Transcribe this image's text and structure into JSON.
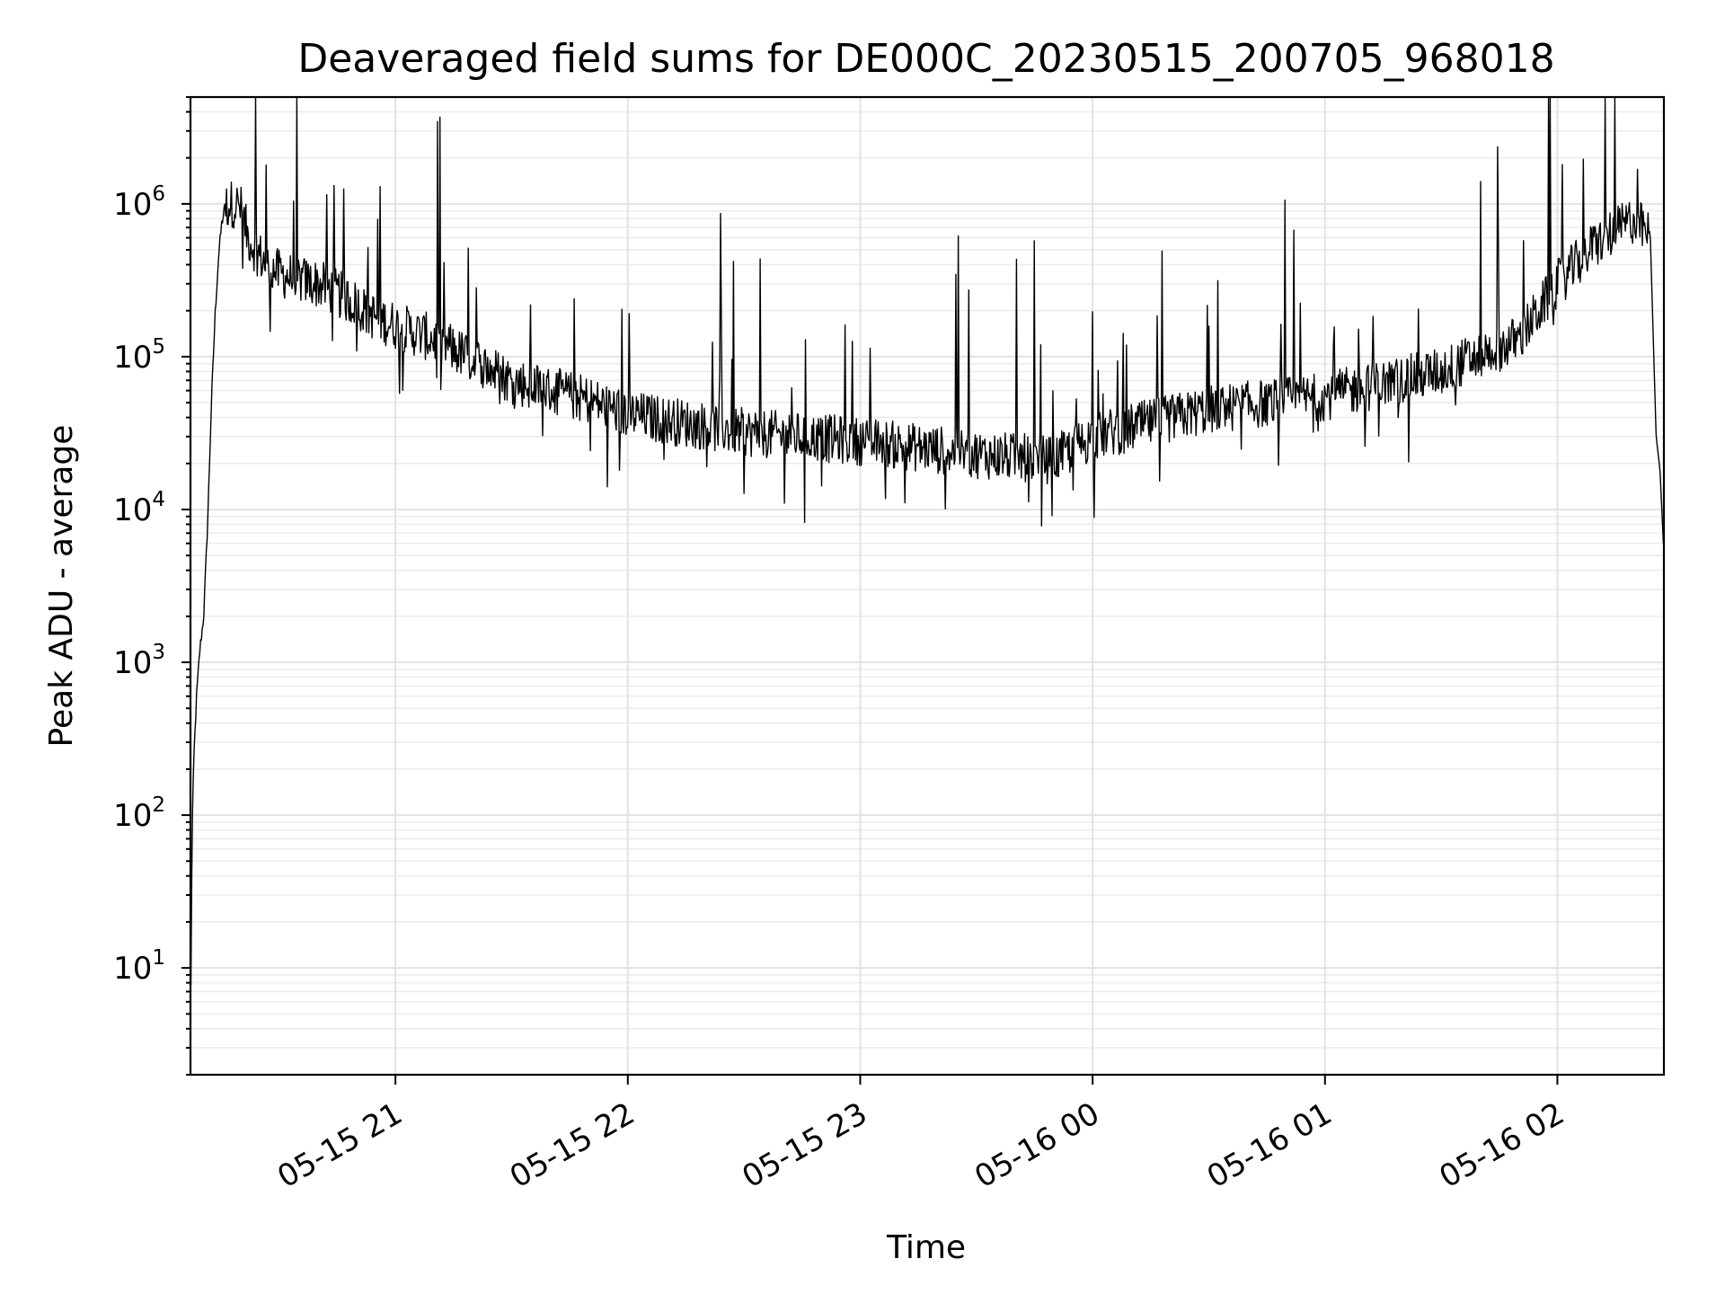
{
  "chart_data": {
    "type": "line",
    "title": "Deaveraged field sums for DE000C_20230515_200705_968018",
    "xlabel": "Time",
    "ylabel": "Peak ADU - average",
    "yscale": "log",
    "ylim": [
      2,
      5000000
    ],
    "xlim": [
      "2023-05-15 20:07:05",
      "2023-05-16 02:27:30"
    ],
    "grid": true,
    "legend": "none",
    "line_color": "#000000",
    "x_ticks": [
      {
        "value": "2023-05-15 21:00",
        "label": "05-15 21"
      },
      {
        "value": "2023-05-15 22:00",
        "label": "05-15 22"
      },
      {
        "value": "2023-05-15 23:00",
        "label": "05-15 23"
      },
      {
        "value": "2023-05-16 00:00",
        "label": "05-16 00"
      },
      {
        "value": "2023-05-16 01:00",
        "label": "05-16 01"
      },
      {
        "value": "2023-05-16 02:00",
        "label": "05-16 02"
      }
    ],
    "y_ticks": [
      {
        "value": 10,
        "base": "10",
        "exp": "1"
      },
      {
        "value": 100,
        "base": "10",
        "exp": "2"
      },
      {
        "value": 1000,
        "base": "10",
        "exp": "3"
      },
      {
        "value": 10000,
        "base": "10",
        "exp": "4"
      },
      {
        "value": 100000,
        "base": "10",
        "exp": "5"
      },
      {
        "value": 1000000,
        "base": "10",
        "exp": "6"
      }
    ],
    "series": [
      {
        "x": [
          "2023-05-15 20:07:05",
          "2023-05-15 20:07:30",
          "2023-05-15 20:08:00",
          "2023-05-15 20:08:40",
          "2023-05-15 20:09:30",
          "2023-05-15 20:10:30",
          "2023-05-15 20:11:30",
          "2023-05-15 20:12:30",
          "2023-05-15 20:13:30",
          "2023-05-15 20:14:20",
          "2023-05-15 20:15:10",
          "2023-05-15 20:16:00",
          "2023-05-15 20:17:00",
          "2023-05-15 20:18:30",
          "2023-05-15 20:20:00",
          "2023-05-15 20:22:00",
          "2023-05-15 20:24:00",
          "2023-05-15 20:26:00",
          "2023-05-15 20:28:00",
          "2023-05-15 20:30:00",
          "2023-05-15 20:35:00",
          "2023-05-15 20:40:00",
          "2023-05-15 20:45:00",
          "2023-05-15 20:50:00",
          "2023-05-15 20:55:00",
          "2023-05-15 21:00:00",
          "2023-05-15 21:10:00",
          "2023-05-15 21:20:00",
          "2023-05-15 21:30:00",
          "2023-05-15 21:40:00",
          "2023-05-15 21:50:00",
          "2023-05-15 22:00:00",
          "2023-05-15 22:30:00",
          "2023-05-15 23:00:00",
          "2023-05-15 23:30:00",
          "2023-05-15 23:50:00",
          "2023-05-16 00:00:00",
          "2023-05-16 00:30:00",
          "2023-05-16 01:00:00",
          "2023-05-16 01:30:00",
          "2023-05-16 01:50:00",
          "2023-05-16 02:00:00",
          "2023-05-16 02:10:00",
          "2023-05-16 02:20:00",
          "2023-05-16 02:24:00",
          "2023-05-16 02:25:30",
          "2023-05-16 02:26:30",
          "2023-05-16 02:27:30"
        ],
        "y": [
          3,
          80,
          250,
          600,
          1200,
          2000,
          8000,
          50000,
          200000,
          450000,
          750000,
          950000,
          1000000,
          1000000,
          950000,
          600000,
          500000,
          420000,
          380000,
          350000,
          320000,
          300000,
          260000,
          220000,
          180000,
          160000,
          130000,
          95000,
          70000,
          60000,
          52000,
          42000,
          32000,
          28000,
          23000,
          21000,
          30000,
          45000,
          55000,
          80000,
          130000,
          300000,
          550000,
          800000,
          600000,
          30000,
          18000,
          5000
        ]
      }
    ]
  }
}
